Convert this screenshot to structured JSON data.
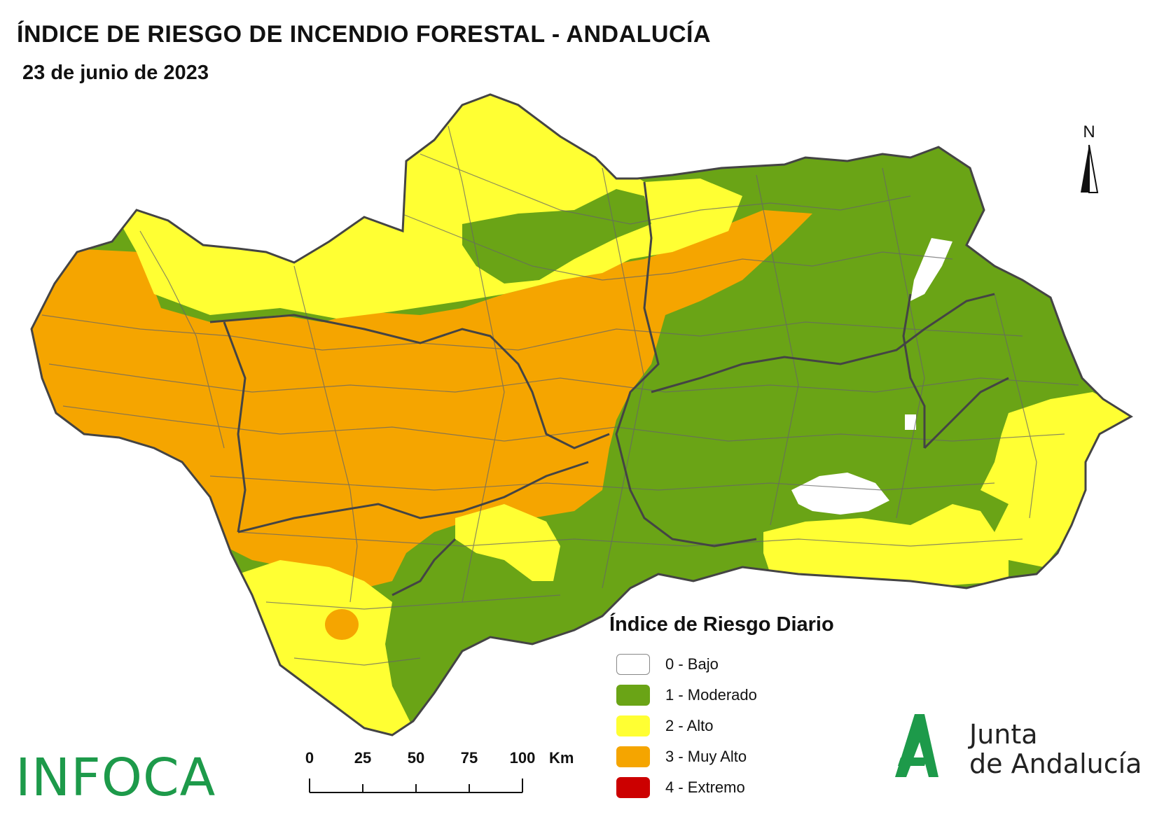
{
  "header": {
    "title": "ÍNDICE DE RIESGO DE INCENDIO FORESTAL - ANDALUCÍA",
    "date": "23 de junio de 2023"
  },
  "north_arrow": {
    "label": "N"
  },
  "legend": {
    "title": "Índice de Riesgo Diario",
    "items": [
      {
        "label": "0 - Bajo",
        "color": "#ffffff"
      },
      {
        "label": "1 - Moderado",
        "color": "#6aa416"
      },
      {
        "label": "2 - Alto",
        "color": "#ffff33"
      },
      {
        "label": "3 - Muy Alto",
        "color": "#f5a500"
      },
      {
        "label": "4 - Extremo",
        "color": "#cc0000"
      }
    ]
  },
  "scale_bar": {
    "ticks": [
      "0",
      "25",
      "50",
      "75",
      "100"
    ],
    "unit": "Km"
  },
  "logos": {
    "infoca": "INFOCA",
    "junta_line1": "Junta",
    "junta_line2": "de Andalucía",
    "junta_color": "#1d9a4a"
  }
}
